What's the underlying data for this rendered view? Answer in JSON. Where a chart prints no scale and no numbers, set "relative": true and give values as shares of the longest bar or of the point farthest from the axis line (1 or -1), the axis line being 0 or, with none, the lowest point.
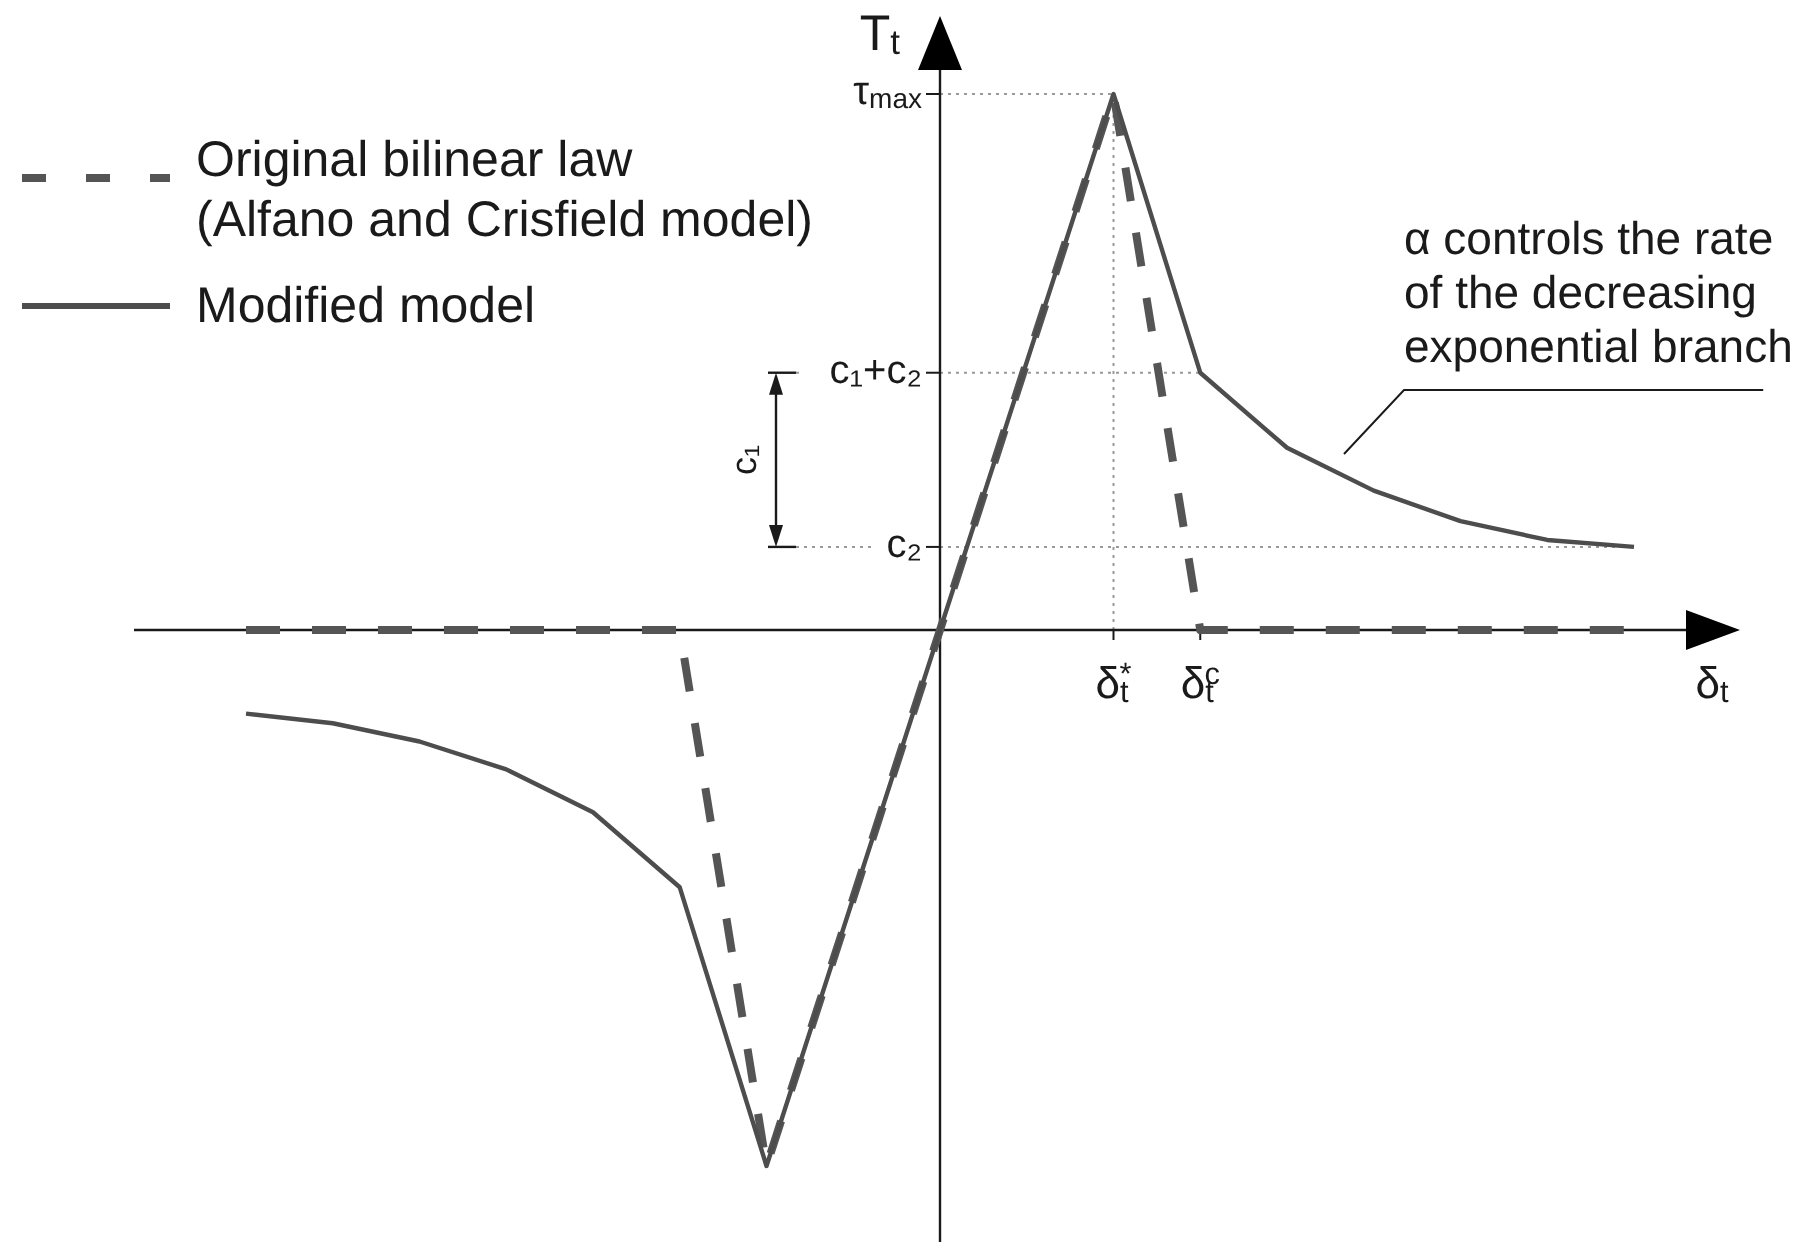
{
  "chart_data": {
    "type": "line",
    "relative": true,
    "xlabel": "δ$_{t}$",
    "ylabel": "T$_{t}$",
    "categories": [
      null,
      null,
      null,
      null,
      null,
      null,
      null,
      null,
      null,
      null,
      "δ$_{t}$$^{*}$",
      "δ$_{t}$$^{c}$",
      null,
      null,
      null,
      null,
      null
    ],
    "legend": "top left",
    "series": [
      {
        "name": "Original bilinear law\n(Alfano and Crisfield model)",
        "color": "#555555",
        "line_style": "dashed",
        "values": [
          0,
          0,
          0,
          0,
          0,
          0,
          -1,
          -0.5,
          0,
          0.5,
          1,
          0,
          0,
          0,
          0,
          0,
          0
        ]
      },
      {
        "name": "Modified model",
        "color": "#4d4d4d",
        "line_style": "solid",
        "values": [
          -0.156,
          -0.174,
          -0.208,
          -0.26,
          -0.34,
          -0.48,
          -1,
          -0.5,
          0,
          0.5,
          1,
          0.48,
          0.34,
          0.26,
          0.203,
          0.168,
          0.155
        ]
      }
    ],
    "ref_lines": [
      {
        "axis": "y",
        "value": 1,
        "label": "τ$_{max}$",
        "color": "#999999",
        "line_style": "dotted"
      },
      {
        "axis": "y",
        "value": 0.48,
        "label": "c₁+c₂",
        "color": "#999999",
        "line_style": "dotted"
      },
      {
        "axis": "y",
        "value": 0.155,
        "label": "c₂",
        "color": "#999999",
        "line_style": "dotted"
      },
      {
        "axis": "x",
        "value": "δ$_{t}$$^{*}$",
        "color": "#999999",
        "line_style": "dotted"
      }
    ],
    "annotations": [
      "α controls the rate\nof the decreasing\nexponential branch",
      "c₁"
    ]
  }
}
